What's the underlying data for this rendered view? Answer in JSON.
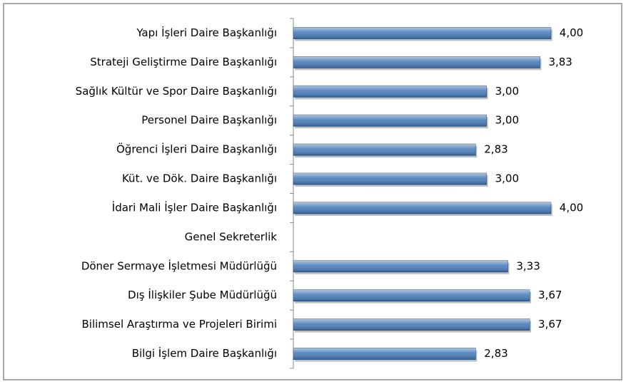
{
  "chart_data": {
    "type": "barh",
    "categories": [
      "Yapı İşleri Daire Başkanlığı",
      "Strateji Geliştirme Daire Başkanlığı",
      "Sağlık Kültür ve Spor Daire Başkanlığı",
      "Personel Daire Başkanlığı",
      "Öğrenci İşleri Daire Başkanlığı",
      "Küt. ve Dök. Daire Başkanlığı",
      "İdari Mali İşler Daire Başkanlığı",
      "Genel Sekreterlik",
      "Döner Sermaye İşletmesi Müdürlüğü",
      "Dış İlişkiler Şube Müdürlüğü",
      "Bilimsel Araştırma ve Projeleri Birimi",
      "Bilgi İşlem Daire Başkanlığı"
    ],
    "values": [
      4.0,
      3.83,
      3.0,
      3.0,
      2.83,
      3.0,
      4.0,
      null,
      3.33,
      3.67,
      3.67,
      2.83
    ],
    "value_labels": [
      "4,00",
      "3,83",
      "3,00",
      "3,00",
      "2,83",
      "3,00",
      "4,00",
      null,
      "3,33",
      "3,67",
      "3,67",
      "2,83"
    ],
    "color": "#4a7ebb",
    "xlim": [
      0,
      5
    ]
  }
}
